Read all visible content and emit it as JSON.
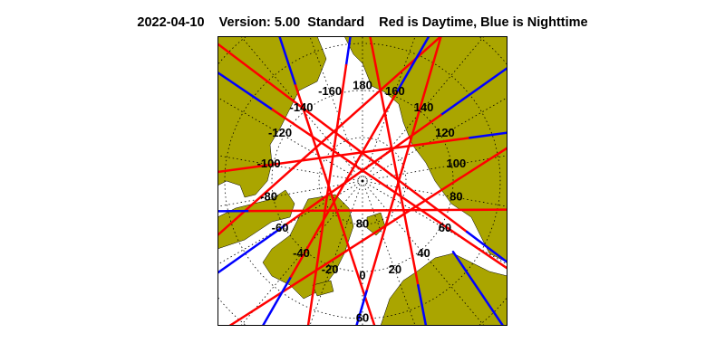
{
  "header": {
    "date": "2022-04-10",
    "version": "Version: 5.00",
    "mode": "Standard",
    "legend": "Red is Daytime, Blue is Nighttime"
  },
  "colors": {
    "land": "#aaa500",
    "daytime": "#ff0000",
    "nighttime": "#0000ff",
    "frame": "#000000"
  },
  "map": {
    "projection": "north polar stereographic",
    "longitude_labels": [
      "180",
      "160",
      "140",
      "120",
      "100",
      "80",
      "60",
      "40",
      "20",
      "0",
      "-20",
      "-40",
      "-60",
      "-80",
      "-100",
      "-120",
      "-140",
      "-160"
    ],
    "latitude_labels": [
      "80",
      "60"
    ]
  }
}
